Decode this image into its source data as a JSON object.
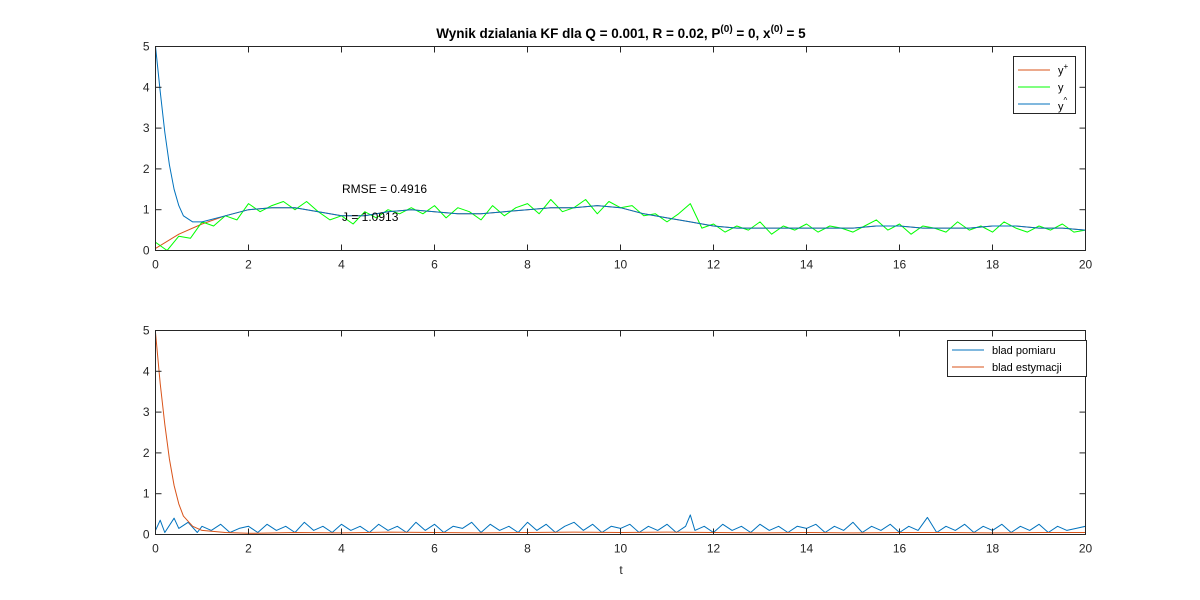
{
  "figure": {
    "title": {
      "prefix": "Wynik dzialania KF dla Q = 0.001, R = 0.02, P",
      "p_sup": "(0)",
      "middle": " = 0, x",
      "x_sup": "(0)",
      "suffix": " = 5"
    }
  },
  "colors": {
    "y_plus": "#D95319",
    "y": "#00FF00",
    "y_hat": "#0072BD",
    "blad_pomiaru": "#0072BD",
    "blad_estymacji": "#D95319",
    "axis": "#262626"
  },
  "chart_data": [
    {
      "type": "line",
      "title": "Wynik dzialania KF dla Q = 0.001, R = 0.02, P(0) = 0, x(0) = 5",
      "xlim": [
        0,
        20
      ],
      "ylim": [
        0,
        5
      ],
      "xticks": [
        "0",
        "2",
        "4",
        "6",
        "8",
        "10",
        "12",
        "14",
        "16",
        "18",
        "20"
      ],
      "yticks": [
        "0",
        "1",
        "2",
        "3",
        "4",
        "5"
      ],
      "xlabel": "",
      "ylabel": "",
      "grid": false,
      "legend_position": "top-right",
      "legend": [
        {
          "label": "y",
          "sup": "+",
          "color_key": "y_plus"
        },
        {
          "label": "y",
          "sup": "",
          "color_key": "y"
        },
        {
          "label": "y",
          "sup": "^",
          "color_key": "y_hat"
        }
      ],
      "annotations": [
        "RMSE = 0.4916",
        "J = 1.0913"
      ],
      "series": [
        {
          "name": "y+",
          "x": [
            0,
            0.5,
            1,
            1.5,
            2,
            2.5,
            3,
            3.5,
            4,
            4.5,
            5,
            5.5,
            6,
            6.5,
            7,
            7.5,
            8,
            8.5,
            9,
            9.5,
            10,
            10.5,
            11,
            11.5,
            12,
            12.5,
            13,
            13.5,
            14,
            14.5,
            15,
            15.5,
            16,
            16.5,
            17,
            17.5,
            18,
            18.5,
            19,
            19.5,
            20
          ],
          "y": [
            0.05,
            0.4,
            0.65,
            0.85,
            1.0,
            1.05,
            1.05,
            0.95,
            0.85,
            0.85,
            0.95,
            1.0,
            0.95,
            0.9,
            0.9,
            0.95,
            1.0,
            1.05,
            1.05,
            1.1,
            1.05,
            0.9,
            0.8,
            0.7,
            0.6,
            0.55,
            0.55,
            0.55,
            0.55,
            0.55,
            0.55,
            0.6,
            0.6,
            0.55,
            0.55,
            0.55,
            0.6,
            0.6,
            0.55,
            0.55,
            0.5
          ]
        },
        {
          "name": "y",
          "x": [
            0,
            0.25,
            0.5,
            0.75,
            1,
            1.25,
            1.5,
            1.75,
            2,
            2.25,
            2.5,
            2.75,
            3,
            3.25,
            3.5,
            3.75,
            4,
            4.25,
            4.5,
            4.75,
            5,
            5.25,
            5.5,
            5.75,
            6,
            6.25,
            6.5,
            6.75,
            7,
            7.25,
            7.5,
            7.75,
            8,
            8.25,
            8.5,
            8.75,
            9,
            9.25,
            9.5,
            9.75,
            10,
            10.25,
            10.5,
            10.75,
            11,
            11.25,
            11.5,
            11.75,
            12,
            12.25,
            12.5,
            12.75,
            13,
            13.25,
            13.5,
            13.75,
            14,
            14.25,
            14.5,
            14.75,
            15,
            15.25,
            15.5,
            15.75,
            16,
            16.25,
            16.5,
            16.75,
            17,
            17.25,
            17.5,
            17.75,
            18,
            18.25,
            18.5,
            18.75,
            19,
            19.25,
            19.5,
            19.75,
            20
          ],
          "y": [
            0.2,
            0.0,
            0.35,
            0.3,
            0.7,
            0.6,
            0.85,
            0.75,
            1.15,
            0.95,
            1.1,
            1.2,
            1.0,
            1.2,
            0.95,
            0.75,
            0.85,
            0.65,
            0.95,
            0.8,
            1.0,
            0.9,
            1.05,
            0.9,
            1.1,
            0.8,
            1.05,
            0.95,
            0.75,
            1.1,
            0.85,
            1.05,
            1.15,
            0.9,
            1.25,
            0.95,
            1.05,
            1.25,
            0.9,
            1.2,
            1.05,
            1.1,
            0.85,
            0.9,
            0.7,
            0.9,
            1.15,
            0.55,
            0.65,
            0.45,
            0.6,
            0.5,
            0.7,
            0.4,
            0.6,
            0.5,
            0.65,
            0.45,
            0.6,
            0.55,
            0.45,
            0.6,
            0.75,
            0.5,
            0.65,
            0.4,
            0.6,
            0.55,
            0.45,
            0.7,
            0.5,
            0.6,
            0.45,
            0.7,
            0.55,
            0.45,
            0.6,
            0.5,
            0.65,
            0.45,
            0.5
          ]
        },
        {
          "name": "y^",
          "x": [
            0,
            0.1,
            0.2,
            0.3,
            0.4,
            0.5,
            0.6,
            0.8,
            1,
            1.5,
            2,
            2.5,
            3,
            3.5,
            4,
            4.5,
            5,
            5.5,
            6,
            6.5,
            7,
            7.5,
            8,
            8.5,
            9,
            9.5,
            10,
            10.5,
            11,
            11.5,
            12,
            12.5,
            13,
            13.5,
            14,
            14.5,
            15,
            15.5,
            16,
            16.5,
            17,
            17.5,
            18,
            18.5,
            19,
            19.5,
            20
          ],
          "y": [
            5.0,
            3.9,
            2.9,
            2.1,
            1.5,
            1.1,
            0.85,
            0.7,
            0.7,
            0.85,
            1.0,
            1.05,
            1.05,
            0.95,
            0.85,
            0.85,
            0.95,
            1.0,
            0.95,
            0.9,
            0.9,
            0.95,
            1.0,
            1.05,
            1.05,
            1.1,
            1.05,
            0.9,
            0.8,
            0.7,
            0.6,
            0.55,
            0.55,
            0.55,
            0.55,
            0.55,
            0.55,
            0.6,
            0.6,
            0.55,
            0.55,
            0.55,
            0.6,
            0.6,
            0.55,
            0.55,
            0.5
          ]
        }
      ]
    },
    {
      "type": "line",
      "title": "",
      "xlim": [
        0,
        20
      ],
      "ylim": [
        0,
        5
      ],
      "xticks": [
        "0",
        "2",
        "4",
        "6",
        "8",
        "10",
        "12",
        "14",
        "16",
        "18",
        "20"
      ],
      "yticks": [
        "0",
        "1",
        "2",
        "3",
        "4",
        "5"
      ],
      "xlabel": "t",
      "ylabel": "",
      "grid": false,
      "legend_position": "top-right",
      "legend": [
        {
          "label": "blad pomiaru",
          "color_key": "blad_pomiaru"
        },
        {
          "label": "blad estymacji",
          "color_key": "blad_estymacji"
        }
      ],
      "series": [
        {
          "name": "blad pomiaru",
          "x": [
            0,
            0.1,
            0.2,
            0.4,
            0.5,
            0.7,
            0.9,
            1.0,
            1.2,
            1.4,
            1.6,
            1.8,
            2.0,
            2.2,
            2.4,
            2.6,
            2.8,
            3.0,
            3.2,
            3.4,
            3.6,
            3.8,
            4.0,
            4.2,
            4.4,
            4.6,
            4.8,
            5.0,
            5.2,
            5.4,
            5.6,
            5.8,
            6.0,
            6.2,
            6.4,
            6.6,
            6.8,
            7.0,
            7.2,
            7.4,
            7.6,
            7.8,
            8.0,
            8.2,
            8.4,
            8.6,
            8.8,
            9.0,
            9.2,
            9.4,
            9.6,
            9.8,
            10.0,
            10.2,
            10.4,
            10.6,
            10.8,
            11.0,
            11.2,
            11.4,
            11.5,
            11.6,
            11.8,
            12.0,
            12.2,
            12.4,
            12.6,
            12.8,
            13.0,
            13.2,
            13.4,
            13.6,
            13.8,
            14.0,
            14.2,
            14.4,
            14.6,
            14.8,
            15.0,
            15.2,
            15.4,
            15.6,
            15.8,
            16.0,
            16.2,
            16.4,
            16.6,
            16.8,
            17.0,
            17.2,
            17.4,
            17.6,
            17.8,
            18.0,
            18.2,
            18.4,
            18.6,
            18.8,
            19.0,
            19.2,
            19.4,
            19.6,
            19.8,
            20.0
          ],
          "y": [
            0.1,
            0.35,
            0.05,
            0.4,
            0.15,
            0.3,
            0.05,
            0.2,
            0.1,
            0.25,
            0.05,
            0.15,
            0.2,
            0.05,
            0.25,
            0.1,
            0.2,
            0.05,
            0.3,
            0.1,
            0.2,
            0.05,
            0.25,
            0.1,
            0.2,
            0.05,
            0.25,
            0.1,
            0.2,
            0.05,
            0.3,
            0.1,
            0.25,
            0.05,
            0.2,
            0.15,
            0.3,
            0.05,
            0.25,
            0.1,
            0.2,
            0.05,
            0.3,
            0.1,
            0.25,
            0.05,
            0.2,
            0.3,
            0.1,
            0.25,
            0.05,
            0.2,
            0.15,
            0.25,
            0.05,
            0.2,
            0.1,
            0.25,
            0.05,
            0.2,
            0.48,
            0.1,
            0.2,
            0.05,
            0.25,
            0.1,
            0.2,
            0.05,
            0.25,
            0.1,
            0.2,
            0.05,
            0.2,
            0.15,
            0.25,
            0.05,
            0.2,
            0.1,
            0.3,
            0.05,
            0.2,
            0.1,
            0.25,
            0.05,
            0.2,
            0.1,
            0.42,
            0.05,
            0.2,
            0.1,
            0.25,
            0.05,
            0.2,
            0.1,
            0.25,
            0.05,
            0.2,
            0.1,
            0.25,
            0.05,
            0.2,
            0.1,
            0.15,
            0.2
          ]
        },
        {
          "name": "blad estymacji",
          "x": [
            0,
            0.1,
            0.2,
            0.3,
            0.4,
            0.5,
            0.6,
            0.8,
            1.0,
            1.5,
            2,
            3,
            4,
            5,
            6,
            7,
            8,
            9,
            10,
            11,
            12,
            13,
            14,
            15,
            16,
            17,
            18,
            19,
            20
          ],
          "y": [
            4.95,
            3.7,
            2.7,
            1.85,
            1.2,
            0.75,
            0.45,
            0.2,
            0.1,
            0.05,
            0.03,
            0.05,
            0.04,
            0.06,
            0.05,
            0.04,
            0.05,
            0.06,
            0.05,
            0.06,
            0.05,
            0.04,
            0.05,
            0.04,
            0.05,
            0.05,
            0.04,
            0.05,
            0.05
          ]
        }
      ]
    }
  ]
}
